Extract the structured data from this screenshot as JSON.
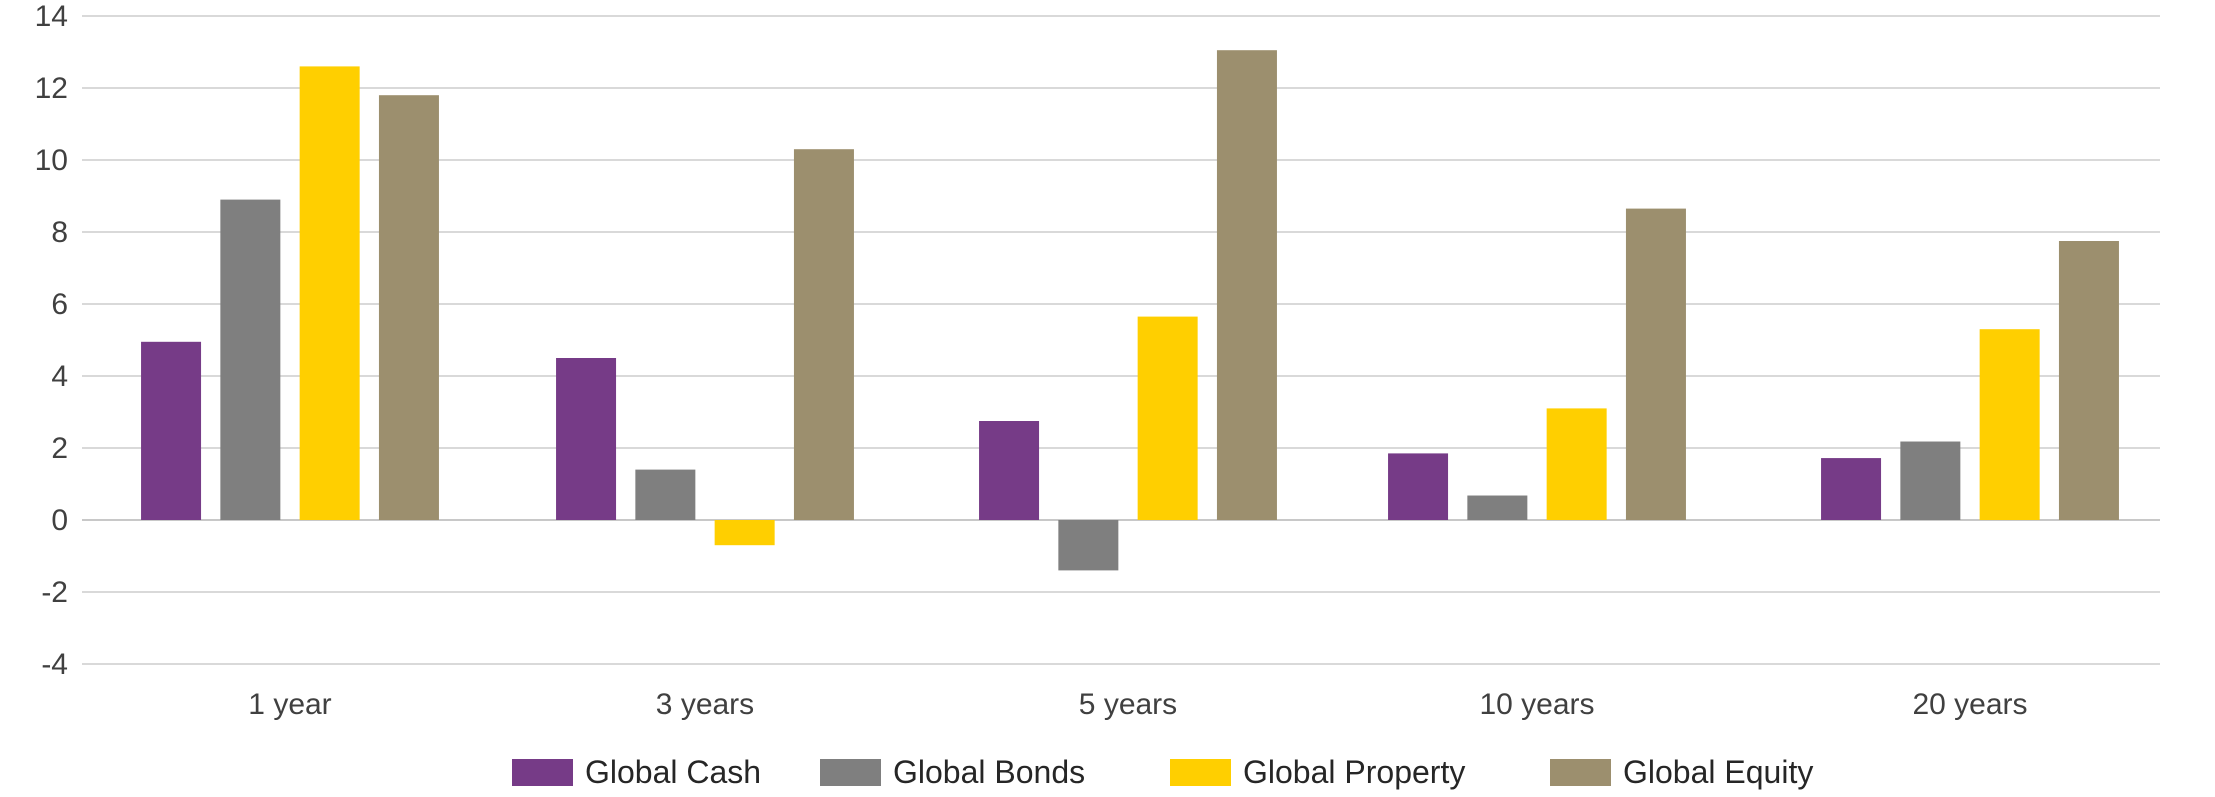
{
  "chart_data": {
    "type": "bar",
    "categories": [
      "1 year",
      "3 years",
      "5 years",
      "10 years",
      "20 years"
    ],
    "series": [
      {
        "name": "Global Cash",
        "color": "#763b87",
        "values": [
          4.95,
          4.5,
          2.75,
          1.85,
          1.72
        ]
      },
      {
        "name": "Global Bonds",
        "color": "#7f7f7f",
        "values": [
          8.9,
          1.4,
          -1.4,
          0.68,
          2.18
        ]
      },
      {
        "name": "Global Property",
        "color": "#ffcf00",
        "values": [
          12.6,
          -0.7,
          5.65,
          3.1,
          5.3
        ]
      },
      {
        "name": "Global Equity",
        "color": "#9c8f6e",
        "values": [
          11.8,
          10.3,
          13.05,
          8.65,
          7.75
        ]
      }
    ],
    "yticks": [
      "14",
      "12",
      "10",
      "8",
      "6",
      "4",
      "2",
      "0",
      "-2",
      "-4"
    ],
    "ylim": [
      -4,
      14
    ],
    "grid": true,
    "legend_position": "bottom",
    "title": "",
    "xlabel": "",
    "ylabel": ""
  }
}
